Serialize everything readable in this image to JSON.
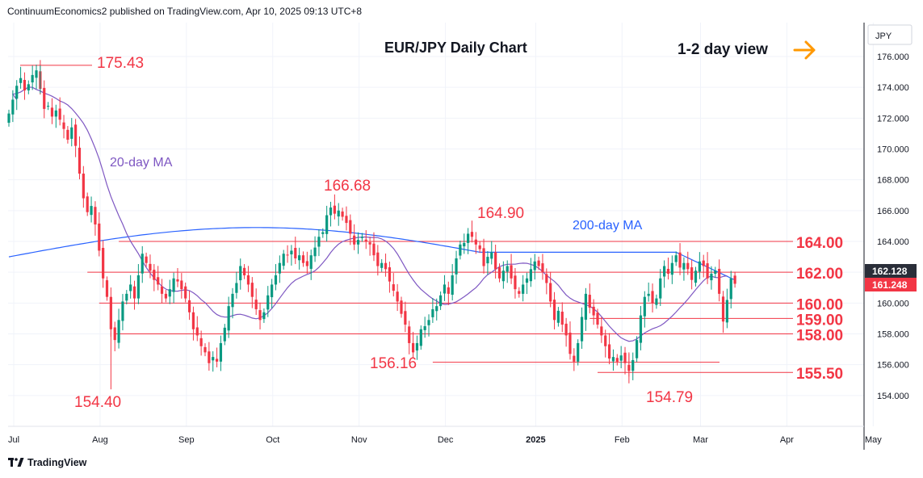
{
  "header": {
    "published_line": "ContinuumEconomics2 published on TradingView.com, Apr 10, 2025 09:13 UTC+8"
  },
  "footer": {
    "brand": "TradingView",
    "logo_icon": "tradingview-logo-icon"
  },
  "colors": {
    "candle_up": "#089981",
    "candle_down": "#f23645",
    "ma20": "#7e57c2",
    "ma200": "#2962ff",
    "level_text": "#f23645",
    "level_line": "#f23645",
    "arrow": "#ff9800",
    "grid": "#f0f3fa",
    "last_price_badge": "#f23645",
    "ma_badge": "#2a2e39"
  },
  "chart_data": {
    "type": "candlestick",
    "title": "EUR/JPY Daily Chart",
    "view_label": "1-2 day view",
    "view_icon": "arrow-right-icon",
    "currency": "JPY",
    "y_range": [
      152.0,
      178.2
    ],
    "y_ticks": [
      "176.000",
      "174.000",
      "172.000",
      "170.000",
      "168.000",
      "166.000",
      "164.000",
      "162.000",
      "160.000",
      "158.000",
      "156.000",
      "154.000"
    ],
    "x_labels": [
      "Jul",
      "Aug",
      "Sep",
      "Oct",
      "Nov",
      "Dec",
      "2025",
      "Feb",
      "Mar",
      "Apr",
      "May"
    ],
    "price_badges": [
      {
        "label": "162.128",
        "value": 162.128,
        "kind": "ma"
      },
      {
        "label": "161.248",
        "value": 161.248,
        "kind": "last"
      }
    ],
    "levels": [
      {
        "label": "164.00",
        "value": 164.0
      },
      {
        "label": "162.00",
        "value": 162.0
      },
      {
        "label": "160.00",
        "value": 160.0
      },
      {
        "label": "159.00",
        "value": 159.0
      },
      {
        "label": "158.00",
        "value": 158.0
      },
      {
        "label": "155.50",
        "value": 155.5
      }
    ],
    "annotations": [
      {
        "label": "175.43",
        "value": 175.43
      },
      {
        "label": "154.40",
        "value": 154.4
      },
      {
        "label": "166.68",
        "value": 166.68
      },
      {
        "label": "164.90",
        "value": 164.9
      },
      {
        "label": "156.16",
        "value": 156.16
      },
      {
        "label": "154.79",
        "value": 154.79
      }
    ],
    "ma_labels": [
      "20-day MA",
      "200-day MA"
    ],
    "closes": [
      172.3,
      173.2,
      174.1,
      174.6,
      173.8,
      174.2,
      174.8,
      175.1,
      173.9,
      172.6,
      172.8,
      172.1,
      172.5,
      171.9,
      171.3,
      170.6,
      171.4,
      170.2,
      168.4,
      166.8,
      165.9,
      166.3,
      165.1,
      163.4,
      161.6,
      160.4,
      158.3,
      157.6,
      158.9,
      160.1,
      160.6,
      161.2,
      160.3,
      161.8,
      163.2,
      162.6,
      162.1,
      161.5,
      161.2,
      160.6,
      160.3,
      160.9,
      161.6,
      161.4,
      160.9,
      160.3,
      159.4,
      158.3,
      157.9,
      157.2,
      156.8,
      156.1,
      156.5,
      156.2,
      157.4,
      158.4,
      159.8,
      160.6,
      161.3,
      162.4,
      161.8,
      161.2,
      160.4,
      159.6,
      158.9,
      159.4,
      160.5,
      161.2,
      161.8,
      162.6,
      163.2,
      163.1,
      163.4,
      162.9,
      163.1,
      162.6,
      162.4,
      163.1,
      163.6,
      164.3,
      164.6,
      165.7,
      166.2,
      165.8,
      166.0,
      165.6,
      165.2,
      164.5,
      163.8,
      164.1,
      164.3,
      164.0,
      163.8,
      163.1,
      162.4,
      162.6,
      162.2,
      161.4,
      160.8,
      160.1,
      159.3,
      158.6,
      157.4,
      156.8,
      157.4,
      158.3,
      158.5,
      158.9,
      159.6,
      159.8,
      160.5,
      161.2,
      160.6,
      161.8,
      162.9,
      163.8,
      163.9,
      164.5,
      164.3,
      163.8,
      163.5,
      162.4,
      163.0,
      163.3,
      162.2,
      161.6,
      162.1,
      162.4,
      161.6,
      160.9,
      160.6,
      161.2,
      161.6,
      162.2,
      162.7,
      162.4,
      162.0,
      161.3,
      160.1,
      158.9,
      159.5,
      158.6,
      157.9,
      156.7,
      156.2,
      157.4,
      159.1,
      160.6,
      159.7,
      159.2,
      158.6,
      157.9,
      157.2,
      156.4,
      156.5,
      156.2,
      156.6,
      156.1,
      155.6,
      156.3,
      157.6,
      159.2,
      160.4,
      160.6,
      160.0,
      160.3,
      161.6,
      162.4,
      161.9,
      162.6,
      163.1,
      162.3,
      162.6,
      162.2,
      161.5,
      162.1,
      162.7,
      162.4,
      161.6,
      161.9,
      162.1,
      160.6,
      158.8,
      160.2,
      161.6,
      161.25
    ]
  }
}
